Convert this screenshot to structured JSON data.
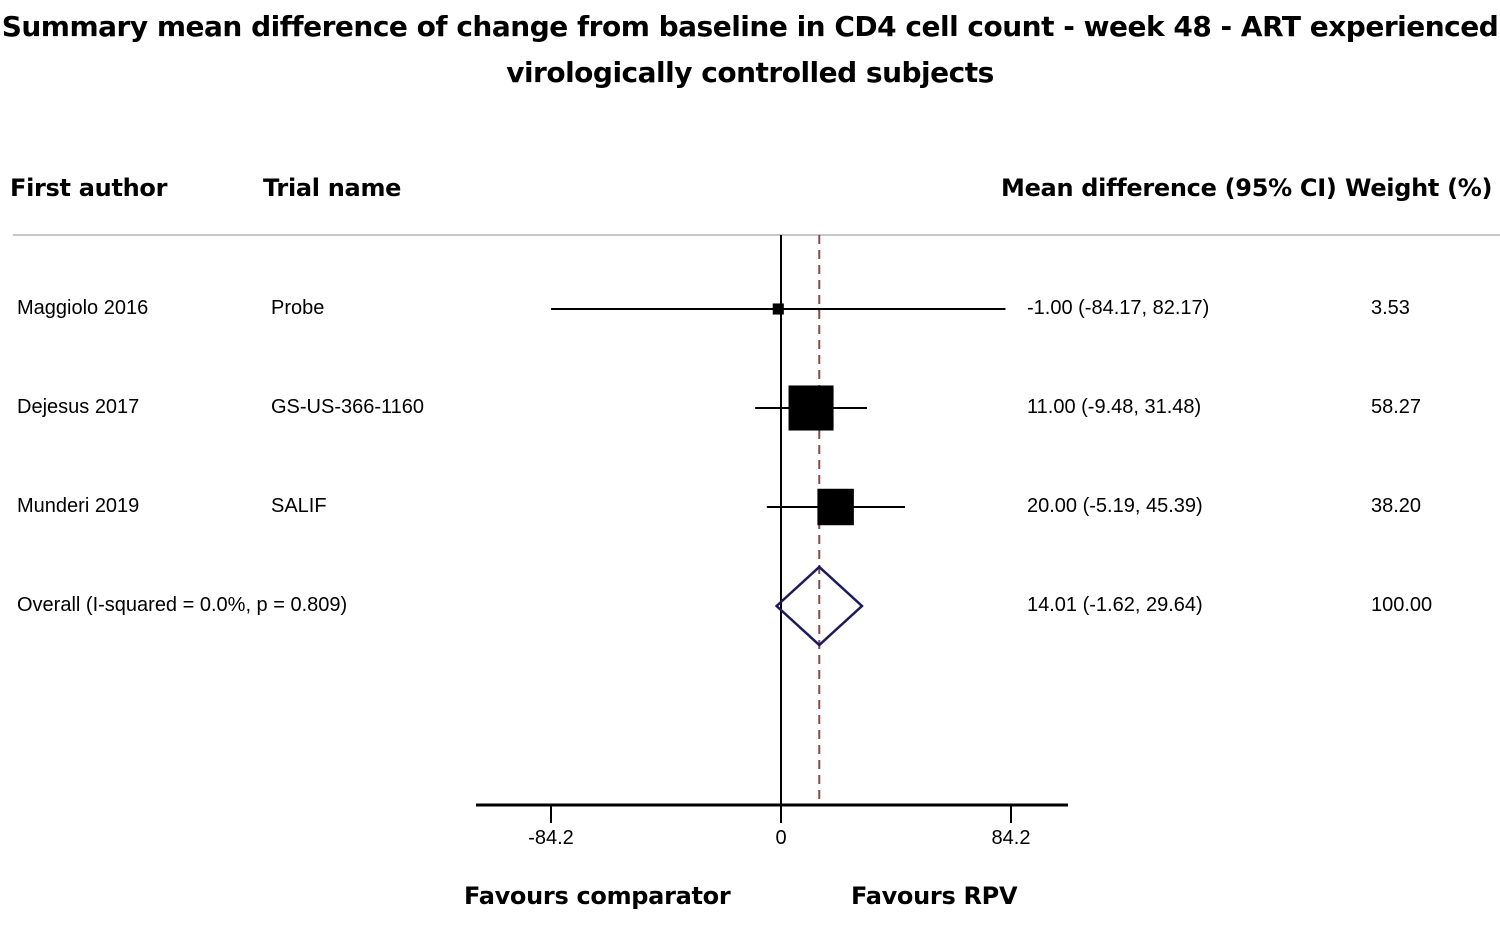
{
  "chart_data": {
    "type": "forest",
    "title_line1": "Summary mean difference of change from baseline in CD4 cell count - week 48 - ART experienced",
    "title_line2": "virologically controlled subjects",
    "columns": {
      "author": "First author",
      "trial": "Trial name",
      "effect": "Mean difference (95% CI)",
      "weight": "Weight (%)"
    },
    "studies": [
      {
        "author": "Maggiolo 2016",
        "trial": "Probe",
        "mean": -1.0,
        "lower": -84.17,
        "upper": 82.17,
        "effect_text": "-1.00 (-84.17, 82.17)",
        "weight": 3.53,
        "weight_text": "3.53"
      },
      {
        "author": "Dejesus 2017",
        "trial": "GS-US-366-1160",
        "mean": 11.0,
        "lower": -9.48,
        "upper": 31.48,
        "effect_text": "11.00 (-9.48, 31.48)",
        "weight": 58.27,
        "weight_text": "58.27"
      },
      {
        "author": "Munderi 2019",
        "trial": "SALIF",
        "mean": 20.0,
        "lower": -5.19,
        "upper": 45.39,
        "effect_text": "20.00 (-5.19, 45.39)",
        "weight": 38.2,
        "weight_text": "38.20"
      }
    ],
    "overall": {
      "label": "Overall  (I-squared = 0.0%, p = 0.809)",
      "mean": 14.01,
      "lower": -1.62,
      "upper": 29.64,
      "effect_text": "14.01 (-1.62, 29.64)",
      "weight_text": "100.00"
    },
    "x_ticks": [
      -84.2,
      0,
      84.2
    ],
    "x_tick_labels": [
      "-84.2",
      "0",
      "84.2"
    ],
    "xlim": [
      -111,
      105
    ],
    "xlabel_left": "Favours comparator",
    "xlabel_right": "Favours RPV",
    "colors": {
      "marker": "#000000",
      "diamond": "#1c1a5c",
      "dashed_line": "#8a4a4a",
      "separator": "#c8c8c8"
    }
  }
}
